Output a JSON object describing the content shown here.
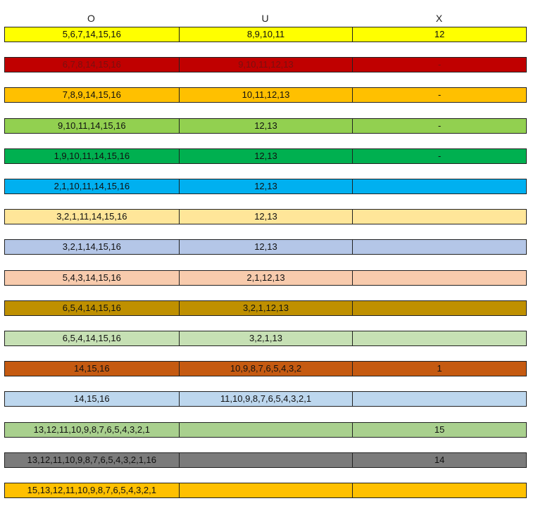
{
  "table": {
    "columns": [
      "O",
      "U",
      "X"
    ],
    "rows": [
      {
        "color": "#ffff00",
        "cells": {
          "O": "5,6,7,14,15,16",
          "U": "8,9,10,11",
          "X": "12"
        }
      },
      {
        "color": "#c00000",
        "text_color": "#7a1010",
        "cells": {
          "O": "6,7,8,14,15,16",
          "U": "9,10,11,12,13",
          "X": "-"
        }
      },
      {
        "color": "#ffc000",
        "cells": {
          "O": "7,8,9,14,15,16",
          "U": "10,11,12,13",
          "X": "-"
        }
      },
      {
        "color": "#92d050",
        "cells": {
          "O": "9,10,11,14,15,16",
          "U": "12,13",
          "X": "-"
        }
      },
      {
        "color": "#00b050",
        "cells": {
          "O": "1,9,10,11,14,15,16",
          "U": "12,13",
          "X": "-"
        }
      },
      {
        "color": "#00b0f0",
        "cells": {
          "O": "2,1,10,11,14,15,16",
          "U": "12,13"
        }
      },
      {
        "color": "#ffe699",
        "cells": {
          "O": "3,2,1,11,14,15,16",
          "U": "12,13"
        }
      },
      {
        "color": "#b4c6e7",
        "cells": {
          "O": "3,2,1,14,15,16",
          "U": "12,13"
        }
      },
      {
        "color": "#f8cbad",
        "cells": {
          "O": "5,4,3,14,15,16",
          "U": "2,1,12,13"
        }
      },
      {
        "color": "#bf9000",
        "cells": {
          "O": "6,5,4,14,15,16",
          "U": "3,2,1,12,13"
        }
      },
      {
        "color": "#c6e0b4",
        "cells": {
          "O": "6,5,4,14,15,16",
          "U": "3,2,1,13"
        }
      },
      {
        "color": "#c55a11",
        "cells": {
          "O": "14,15,16",
          "U": "10,9,8,7,6,5,4,3,2",
          "X": "1"
        }
      },
      {
        "color": "#bdd7ee",
        "cells": {
          "O": "14,15,16",
          "U": "11,10,9,8,7,6,5,4,3,2,1"
        }
      },
      {
        "color": "#a9d08e",
        "cells": {
          "O": "13,12,11,10,9,8,7,6,5,4,3,2,1",
          "X": "15"
        }
      },
      {
        "color": "#7b7b7b",
        "cells": {
          "O": "13,12,11,10,9,8,7,6,5,4,3,2,1,16",
          "X": "14"
        }
      },
      {
        "color": "#ffc000",
        "cells": {
          "O": "15,13,12,11,10,9,8,7,6,5,4,3,2,1"
        }
      }
    ]
  }
}
